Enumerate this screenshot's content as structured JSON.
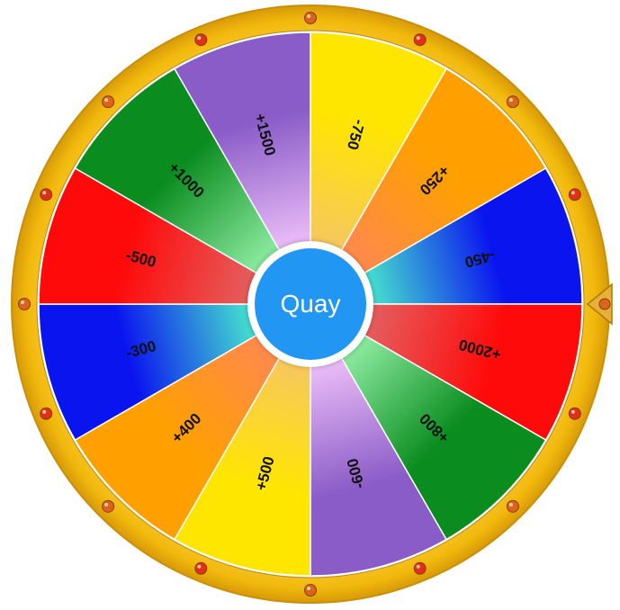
{
  "wheel": {
    "spin_button_label": "Quay",
    "segments": [
      {
        "label": "-750",
        "color": "#ffe600",
        "inner": "#f7c95a"
      },
      {
        "label": "+250",
        "color": "#ffa000",
        "inner": "#ff8a4a"
      },
      {
        "label": "-450",
        "color": "#0a14ef",
        "inner": "#43d6cf"
      },
      {
        "label": "+2000",
        "color": "#ff0a0a",
        "inner": "#e65a5a"
      },
      {
        "label": "+800",
        "color": "#0a8c1e",
        "inner": "#86e69a"
      },
      {
        "label": "-600",
        "color": "#8a5cc8",
        "inner": "#e6b8f5"
      },
      {
        "label": "+500",
        "color": "#ffe600",
        "inner": "#f7c95a"
      },
      {
        "label": "+400",
        "color": "#ffa000",
        "inner": "#ff8a4a"
      },
      {
        "label": "-300",
        "color": "#0a14ef",
        "inner": "#43d6cf"
      },
      {
        "label": "-500",
        "color": "#ff0a0a",
        "inner": "#e65a5a"
      },
      {
        "label": "+1000",
        "color": "#0a8c1e",
        "inner": "#86e69a"
      },
      {
        "label": "+1500",
        "color": "#8a5cc8",
        "inner": "#e6b8f5"
      }
    ],
    "rim_color": "#f2b90c",
    "bulb_color": "#d9651c",
    "bulb_count": 16
  }
}
